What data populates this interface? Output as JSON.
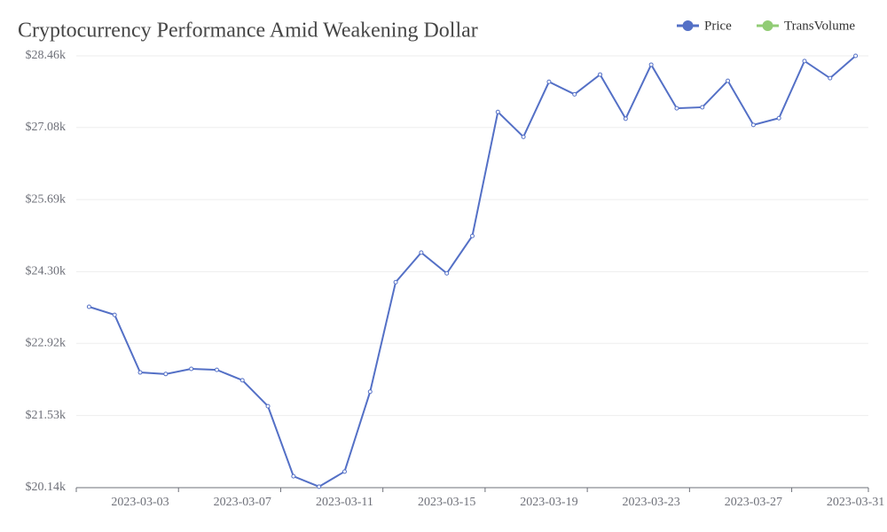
{
  "chart_data": {
    "type": "line",
    "title": "Cryptocurrency Performance Amid Weakening Dollar",
    "legend": [
      {
        "name": "Price",
        "color": "#5470c6"
      },
      {
        "name": "TransVolume",
        "color": "#91cc75"
      }
    ],
    "legend_position": "top-right",
    "categories": [
      null,
      null,
      "2023-03-03",
      null,
      null,
      null,
      "2023-03-07",
      null,
      null,
      null,
      "2023-03-11",
      null,
      null,
      null,
      "2023-03-15",
      null,
      null,
      null,
      "2023-03-19",
      null,
      null,
      null,
      "2023-03-23",
      null,
      null,
      null,
      "2023-03-27",
      null,
      null,
      null,
      "2023-03-31"
    ],
    "series": [
      {
        "name": "Price",
        "color": "#5470c6",
        "values": [
          23625,
          23470,
          22360,
          22330,
          22430,
          22410,
          22210,
          21710,
          20360,
          20160,
          20450,
          21990,
          24100,
          24670,
          24270,
          24990,
          27380,
          26900,
          27960,
          27720,
          28100,
          27250,
          28290,
          27450,
          27470,
          27980,
          27130,
          27260,
          28360,
          28030,
          28460
        ]
      }
    ],
    "ylim": [
      20140,
      28460
    ],
    "yticks": [
      {
        "value": 20140,
        "label": "$20.14k"
      },
      {
        "value": 21530,
        "label": "$21.53k"
      },
      {
        "value": 22920,
        "label": "$22.92k"
      },
      {
        "value": 24300,
        "label": "$24.30k"
      },
      {
        "value": 25690,
        "label": "$25.69k"
      },
      {
        "value": 27080,
        "label": "$27.08k"
      },
      {
        "value": 28460,
        "label": "$28.46k"
      }
    ],
    "grid": true
  }
}
